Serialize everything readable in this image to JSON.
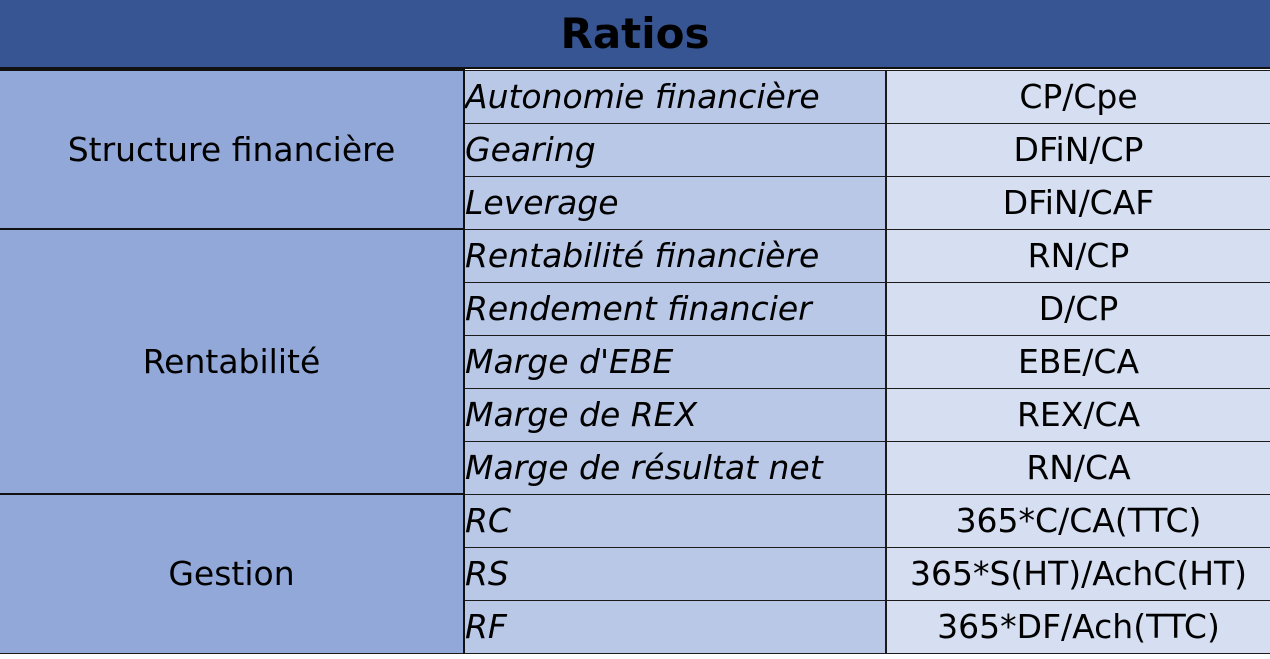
{
  "title": "Ratios",
  "groups": [
    {
      "category": "Structure financière",
      "rows": [
        {
          "name": "Autonomie financière",
          "formula": "CP/Cpe"
        },
        {
          "name": "Gearing",
          "formula": "DFiN/CP"
        },
        {
          "name": "Leverage",
          "formula": "DFiN/CAF"
        }
      ]
    },
    {
      "category": "Rentabilité",
      "rows": [
        {
          "name": "Rentabilité financière",
          "formula": "RN/CP"
        },
        {
          "name": "Rendement financier",
          "formula": "D/CP"
        },
        {
          "name": "Marge d'EBE",
          "formula": "EBE/CA"
        },
        {
          "name": "Marge de REX",
          "formula": "REX/CA"
        },
        {
          "name": "Marge de résultat net",
          "formula": "RN/CA"
        }
      ]
    },
    {
      "category": "Gestion",
      "rows": [
        {
          "name": "RC",
          "formula": "365*C/CA(TTC)"
        },
        {
          "name": "RS",
          "formula": "365*S(HT)/AchC(HT)"
        },
        {
          "name": "RF",
          "formula": "365*DF/Ach(TTC)"
        }
      ]
    }
  ],
  "colors": {
    "title_bg": "#365592",
    "category_bg": "#91a8d8",
    "name_bg": "#b8c8e6",
    "formula_bg": "#d5dff1"
  }
}
